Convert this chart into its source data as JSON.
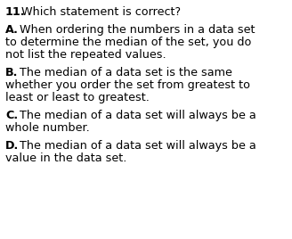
{
  "background_color": "#ffffff",
  "question_number": "11.",
  "question_text": "Which statement is correct?",
  "options": [
    {
      "letter": "A.",
      "lines": [
        "When ordering the numbers in a data set",
        "to determine the median of the set, you do",
        "not list the repeated values."
      ]
    },
    {
      "letter": "B.",
      "lines": [
        "The median of a data set is the same",
        "whether you order the set from greatest to",
        "least or least to greatest."
      ]
    },
    {
      "letter": "C.",
      "lines": [
        "The median of a data set will always be a",
        "whole number."
      ]
    },
    {
      "letter": "D.",
      "lines": [
        "The median of a data set will always be a",
        "value in the data set."
      ]
    }
  ],
  "font_family": "sans-serif",
  "question_fontsize": 9.2,
  "option_fontsize": 9.2,
  "text_color": "#000000",
  "fig_width": 3.28,
  "fig_height": 2.68,
  "dpi": 100
}
